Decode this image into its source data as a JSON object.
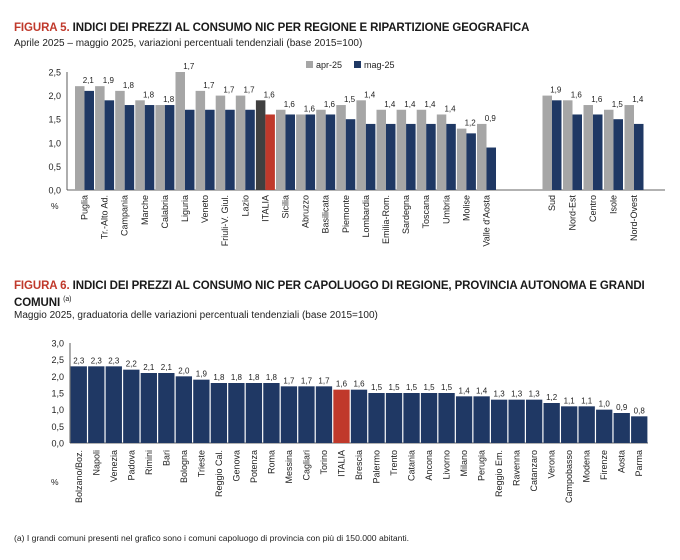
{
  "chart_data": [
    {
      "type": "bar",
      "title_prefix": "FIGURA 5.",
      "title": "INDICI DEI PREZZI AL CONSUMO NIC PER REGIONE E RIPARTIZIONE GEOGRAFICA",
      "subtitle": "Aprile 2025 – maggio 2025, variazioni percentuali tendenziali (base 2015=100)",
      "ylabel": "%",
      "ylim": [
        0,
        2.5
      ],
      "yticks": [
        "0,0",
        "0,5",
        "1,0",
        "1,5",
        "2,0",
        "2,5"
      ],
      "legend_position": "top",
      "categories": [
        "Puglia",
        "Tr.-Alto Ad.",
        "Campania",
        "Marche",
        "Calabria",
        "Liguria",
        "Veneto",
        "Friuli-V. Giul.",
        "Lazio",
        "ITALIA",
        "Sicilia",
        "Abruzzo",
        "Basilicata",
        "Piemonte",
        "Lombardia",
        "Emilia-Rom.",
        "Sardegna",
        "Toscana",
        "Umbria",
        "Molise",
        "Valle d'Aosta",
        "Sud",
        "Nord-Est",
        "Centro",
        "Isole",
        "Nord-Ovest"
      ],
      "series": [
        {
          "name": "apr-25",
          "color": "#a6a6a6",
          "highlight_color": "#404040",
          "values": [
            2.2,
            2.2,
            2.1,
            1.9,
            1.8,
            2.5,
            2.1,
            2.0,
            2.0,
            1.9,
            1.7,
            1.6,
            1.7,
            1.8,
            1.9,
            1.7,
            1.7,
            1.7,
            1.6,
            1.3,
            1.4,
            2.0,
            1.9,
            1.8,
            1.7,
            1.8
          ]
        },
        {
          "name": "mag-25",
          "color": "#1f3864",
          "highlight_color": "#c0392b",
          "values": [
            2.1,
            1.9,
            1.8,
            1.8,
            1.8,
            1.7,
            1.7,
            1.7,
            1.7,
            1.6,
            1.6,
            1.6,
            1.6,
            1.5,
            1.4,
            1.4,
            1.4,
            1.4,
            1.4,
            1.2,
            0.9,
            1.9,
            1.6,
            1.6,
            1.5,
            1.4
          ]
        }
      ],
      "value_labels": [
        "2,1",
        "1,9",
        "1,8",
        "1,8",
        "1,8",
        "1,7",
        "1,7",
        "1,7",
        "1,7",
        "1,6",
        "1,6",
        "1,6",
        "1,6",
        "1,5",
        "1,4",
        "1,4",
        "1,4",
        "1,4",
        "1,4",
        "1,2",
        "0,9",
        "1,9",
        "1,6",
        "1,6",
        "1,5",
        "1,4"
      ],
      "highlight": "ITALIA"
    },
    {
      "type": "bar",
      "title_prefix": "FIGURA 6.",
      "title": "INDICI DEI PREZZI AL CONSUMO NIC PER CAPOLUOGO DI REGIONE, PROVINCIA AUTONOMA E GRANDI COMUNI",
      "title_note": "(a)",
      "subtitle": "Maggio 2025, graduatoria delle variazioni percentuali tendenziali (base 2015=100)",
      "ylabel": "%",
      "ylim": [
        0,
        3.0
      ],
      "yticks": [
        "0,0",
        "0,5",
        "1,0",
        "1,5",
        "2,0",
        "2,5",
        "3,0"
      ],
      "categories": [
        "Bolzano/Boz.",
        "Napoli",
        "Venezia",
        "Padova",
        "Rimini",
        "Bari",
        "Bologna",
        "Trieste",
        "Reggio Cal.",
        "Genova",
        "Potenza",
        "Roma",
        "Messina",
        "Cagliari",
        "Torino",
        "ITALIA",
        "Brescia",
        "Palermo",
        "Trento",
        "Catania",
        "Ancona",
        "Livorno",
        "Milano",
        "Perugia",
        "Reggio Em.",
        "Ravenna",
        "Catanzaro",
        "Verona",
        "Campobasso",
        "Modena",
        "Firenze",
        "Aosta",
        "Parma"
      ],
      "values": [
        2.3,
        2.3,
        2.3,
        2.2,
        2.1,
        2.1,
        2.0,
        1.9,
        1.8,
        1.8,
        1.8,
        1.8,
        1.7,
        1.7,
        1.7,
        1.6,
        1.6,
        1.5,
        1.5,
        1.5,
        1.5,
        1.5,
        1.4,
        1.4,
        1.3,
        1.3,
        1.3,
        1.2,
        1.1,
        1.1,
        1.0,
        0.9,
        0.8
      ],
      "value_labels": [
        "2,3",
        "2,3",
        "2,3",
        "2,2",
        "2,1",
        "2,1",
        "2,0",
        "1,9",
        "1,8",
        "1,8",
        "1,8",
        "1,8",
        "1,7",
        "1,7",
        "1,7",
        "1,6",
        "1,6",
        "1,5",
        "1,5",
        "1,5",
        "1,5",
        "1,5",
        "1,4",
        "1,4",
        "1,3",
        "1,3",
        "1,3",
        "1,2",
        "1,1",
        "1,1",
        "1,0",
        "0,9",
        "0,8"
      ],
      "color": "#1f3864",
      "highlight_color": "#c0392b",
      "highlight": "ITALIA"
    }
  ],
  "footnote": "(a)  I grandi comuni presenti nel grafico sono i comuni capoluogo di provincia con più di 150.000 abitanti."
}
